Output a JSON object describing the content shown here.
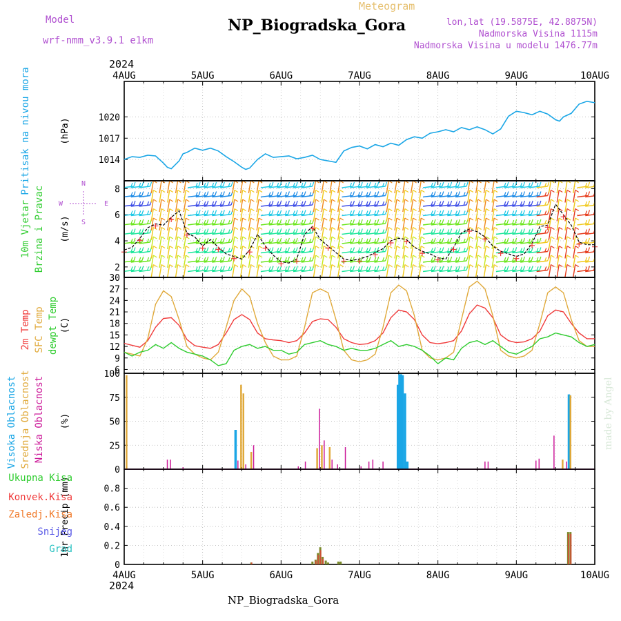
{
  "header": {
    "title": "NP_Biogradska_Gora",
    "meteogram": "Meteogram",
    "model_label": "Model",
    "model_name": "wrf-nmm_v3.9.1  e1km",
    "coords": "lon,lat (19.5875E, 42.8875N)",
    "elevation": "Nadmorska Visina 1115m",
    "model_elevation": "Nadmorska Visina u modelu 1476.77m"
  },
  "footer": {
    "station": "NP_Biogradska_Gora"
  },
  "watermark": "made by Angel",
  "colors": {
    "pressure": "#1aa6e6",
    "temp2m": "#f03a3a",
    "sfc": "#e0a93a",
    "dewpt": "#2ecc2e",
    "high_cloud": "#1aa6e6",
    "mid_cloud": "#e0a93a",
    "low_cloud": "#cc1a99",
    "total": "#2ecc2e",
    "convective": "#f03a3a",
    "frozen": "#f07a2a",
    "snow": "#5a5ae6",
    "graupel": "#2ac2c2",
    "title_purple": "#b050d0",
    "meteogram": "#e6c070"
  },
  "chart_data": [
    {
      "type": "line",
      "id": "pressure",
      "year": "2024",
      "x_ticks": [
        "4AUG",
        "5AUG",
        "6AUG",
        "7AUG",
        "8AUG",
        "9AUG",
        "10AUG"
      ],
      "ylabel": "(hPa)",
      "side_label": [
        "Pritisak na nivou mora"
      ],
      "ylim": [
        1011,
        1025
      ],
      "yticks": [
        1014,
        1017,
        1020
      ],
      "x_days": [
        0,
        0.1,
        0.2,
        0.3,
        0.4,
        0.5,
        0.55,
        0.6,
        0.7,
        0.75,
        0.8,
        0.9,
        1.0,
        1.1,
        1.2,
        1.3,
        1.4,
        1.5,
        1.55,
        1.6,
        1.7,
        1.8,
        1.9,
        2.0,
        2.1,
        2.2,
        2.3,
        2.4,
        2.5,
        2.6,
        2.7,
        2.8,
        2.9,
        3.0,
        3.1,
        3.2,
        3.3,
        3.4,
        3.5,
        3.6,
        3.7,
        3.8,
        3.9,
        4.0,
        4.1,
        4.2,
        4.3,
        4.4,
        4.5,
        4.6,
        4.7,
        4.8,
        4.9,
        5.0,
        5.1,
        5.2,
        5.3,
        5.4,
        5.5,
        5.55,
        5.6,
        5.7,
        5.8,
        5.9,
        6.0
      ],
      "values": [
        1014.0,
        1014.4,
        1014.3,
        1014.6,
        1014.5,
        1013.5,
        1012.9,
        1012.7,
        1013.8,
        1014.8,
        1015.0,
        1015.6,
        1015.3,
        1015.6,
        1015.2,
        1014.4,
        1013.7,
        1012.9,
        1012.6,
        1012.8,
        1014.0,
        1014.8,
        1014.3,
        1014.4,
        1014.5,
        1014.1,
        1014.3,
        1014.6,
        1014.0,
        1013.8,
        1013.6,
        1015.2,
        1015.7,
        1015.9,
        1015.5,
        1016.1,
        1015.8,
        1016.3,
        1016.0,
        1016.8,
        1017.2,
        1017.0,
        1017.7,
        1017.9,
        1018.2,
        1017.9,
        1018.5,
        1018.2,
        1018.6,
        1018.2,
        1017.6,
        1018.3,
        1020.1,
        1020.8,
        1020.6,
        1020.3,
        1020.8,
        1020.4,
        1019.6,
        1019.4,
        1020.0,
        1020.5,
        1021.8,
        1022.2,
        1022.0
      ]
    },
    {
      "type": "line",
      "id": "wind",
      "ylabel": "(m/s)",
      "side_label": [
        "10m Vjetar",
        "Brzina i Pravac"
      ],
      "compass": [
        "N",
        "E",
        "S",
        "W"
      ],
      "ylim": [
        1.2,
        8.6
      ],
      "yticks": [
        2,
        4,
        6,
        8
      ],
      "x_days": [
        0,
        0.1,
        0.2,
        0.3,
        0.4,
        0.5,
        0.6,
        0.7,
        0.8,
        0.9,
        1.0,
        1.1,
        1.2,
        1.3,
        1.4,
        1.5,
        1.6,
        1.7,
        1.8,
        1.9,
        2.0,
        2.1,
        2.2,
        2.3,
        2.4,
        2.5,
        2.6,
        2.7,
        2.8,
        2.9,
        3.0,
        3.1,
        3.2,
        3.3,
        3.4,
        3.5,
        3.6,
        3.7,
        3.8,
        3.9,
        4.0,
        4.1,
        4.2,
        4.3,
        4.4,
        4.5,
        4.6,
        4.7,
        4.8,
        4.9,
        5.0,
        5.1,
        5.2,
        5.3,
        5.4,
        5.5,
        5.6,
        5.7,
        5.8,
        5.9,
        6.0
      ],
      "values": [
        3.3,
        3.5,
        4.2,
        5.0,
        5.3,
        5.2,
        5.8,
        6.3,
        4.6,
        4.3,
        3.6,
        4.1,
        3.5,
        3.0,
        2.8,
        2.6,
        3.3,
        4.5,
        3.6,
        2.9,
        2.4,
        2.3,
        2.6,
        4.5,
        5.1,
        4.1,
        3.6,
        3.1,
        2.6,
        2.5,
        2.6,
        2.8,
        3.1,
        3.4,
        4.0,
        4.2,
        4.1,
        3.5,
        3.2,
        3.0,
        2.7,
        2.6,
        3.5,
        4.6,
        4.9,
        4.7,
        4.3,
        3.6,
        3.2,
        3.0,
        2.8,
        3.0,
        3.8,
        5.1,
        5.2,
        6.8,
        6.0,
        5.2,
        3.9,
        3.7,
        3.7
      ]
    },
    {
      "type": "line",
      "id": "temperature",
      "ylabel": "(C)",
      "side_label": [
        "2m Temp",
        "SFC Temp",
        "dewpt Temp"
      ],
      "ylim": [
        5,
        30
      ],
      "yticks": [
        6,
        9,
        12,
        15,
        18,
        21,
        24,
        27,
        30
      ],
      "x_days": [
        0,
        0.1,
        0.2,
        0.3,
        0.4,
        0.5,
        0.6,
        0.7,
        0.8,
        0.9,
        1.0,
        1.1,
        1.2,
        1.3,
        1.4,
        1.5,
        1.6,
        1.7,
        1.8,
        1.9,
        2.0,
        2.1,
        2.2,
        2.3,
        2.4,
        2.5,
        2.6,
        2.7,
        2.8,
        2.9,
        3.0,
        3.1,
        3.2,
        3.3,
        3.4,
        3.5,
        3.6,
        3.7,
        3.8,
        3.9,
        4.0,
        4.1,
        4.2,
        4.3,
        4.4,
        4.5,
        4.6,
        4.7,
        4.8,
        4.9,
        5.0,
        5.1,
        5.2,
        5.3,
        5.4,
        5.5,
        5.6,
        5.7,
        5.8,
        5.9,
        6.0
      ],
      "series": [
        {
          "name": "2m Temp",
          "values": [
            12.8,
            12.3,
            11.8,
            13.5,
            17.0,
            19.3,
            19.5,
            17.5,
            13.8,
            12.2,
            11.8,
            11.5,
            12.5,
            15.5,
            19.0,
            20.3,
            19.0,
            15.5,
            14.0,
            13.7,
            13.5,
            13.0,
            13.5,
            15.5,
            18.5,
            19.2,
            19.0,
            17.0,
            14.0,
            13.0,
            12.5,
            12.7,
            13.5,
            15.5,
            19.5,
            21.5,
            21.0,
            19.0,
            15.0,
            13.0,
            12.7,
            13.0,
            13.5,
            16.0,
            20.5,
            22.8,
            22.0,
            19.5,
            15.0,
            13.5,
            13.0,
            13.2,
            14.0,
            16.0,
            20.0,
            21.5,
            21.0,
            18.0,
            15.5,
            14.0,
            14.0
          ]
        },
        {
          "name": "SFC Temp",
          "values": [
            10.5,
            10.0,
            9.5,
            14.0,
            23.0,
            26.5,
            25.0,
            19.0,
            12.0,
            10.0,
            9.0,
            8.5,
            10.5,
            17.0,
            24.0,
            27.0,
            25.0,
            18.0,
            13.0,
            9.5,
            8.5,
            8.5,
            9.5,
            17.0,
            26.0,
            27.0,
            26.0,
            19.0,
            11.0,
            8.5,
            8.0,
            8.5,
            10.0,
            17.0,
            26.0,
            28.0,
            26.5,
            20.0,
            11.0,
            9.0,
            8.5,
            9.0,
            10.5,
            19.0,
            27.5,
            29.0,
            27.0,
            20.0,
            11.0,
            9.5,
            9.0,
            9.5,
            11.0,
            18.0,
            26.0,
            27.5,
            26.0,
            19.0,
            13.5,
            12.0,
            12.0
          ]
        },
        {
          "name": "dewpt Temp",
          "values": [
            10.5,
            9.5,
            10.5,
            11.0,
            12.5,
            11.5,
            13.0,
            11.5,
            10.5,
            10.0,
            9.5,
            8.5,
            7.0,
            7.5,
            11.0,
            12.0,
            12.5,
            11.5,
            12.0,
            11.0,
            11.0,
            10.0,
            10.5,
            12.5,
            13.0,
            13.5,
            12.5,
            12.0,
            11.0,
            11.5,
            11.0,
            11.0,
            11.5,
            12.5,
            13.5,
            12.0,
            12.5,
            12.0,
            11.0,
            9.5,
            7.5,
            9.0,
            8.5,
            11.5,
            13.0,
            13.5,
            12.5,
            13.5,
            12.0,
            10.5,
            10.0,
            11.0,
            12.0,
            14.0,
            14.5,
            15.5,
            15.0,
            14.5,
            13.0,
            12.0,
            12.5
          ]
        }
      ]
    },
    {
      "type": "bar",
      "id": "clouds",
      "ylabel": "(%)",
      "side_label": [
        "Visoka Oblacnost",
        "Srednja Oblacnost",
        "Niska Oblacnost"
      ],
      "ylim": [
        0,
        100
      ],
      "yticks": [
        0,
        25,
        50,
        75,
        100
      ],
      "series": [
        {
          "name": "Visoka Oblacnost",
          "x_days": [
            1.42,
            3.49,
            3.51,
            3.53,
            3.55,
            3.58,
            3.61,
            5.67
          ],
          "values": [
            41,
            88,
            99,
            99,
            98,
            79,
            8,
            78
          ]
        },
        {
          "name": "Srednja Oblacnost",
          "x_days": [
            0.03,
            1.49,
            1.52,
            1.62,
            2.46,
            2.52,
            2.62,
            5.59,
            5.69
          ],
          "values": [
            98,
            88,
            79,
            18,
            22,
            25,
            23,
            10,
            77
          ]
        },
        {
          "name": "Niska Oblacnost",
          "x_days": [
            0.55,
            0.59,
            0.75,
            1.45,
            1.55,
            1.65,
            2.22,
            2.31,
            2.49,
            2.55,
            2.65,
            2.72,
            2.82,
            3.02,
            3.12,
            3.17,
            3.3,
            4.6,
            4.64,
            5.25,
            5.29,
            5.48,
            5.64
          ],
          "values": [
            10,
            10,
            2,
            9,
            5,
            25,
            3,
            8,
            63,
            30,
            10,
            5,
            23,
            3,
            8,
            10,
            8,
            8,
            8,
            9,
            11,
            35,
            8
          ]
        }
      ]
    },
    {
      "type": "bar",
      "id": "precip",
      "ylabel": "1hr Precip (mm)",
      "side_label": [
        "Ukupna Kisa",
        "Konvek.Kisa",
        "Zaledj.Kisa",
        "Snijeg",
        "Grad"
      ],
      "ylim": [
        0,
        1.0
      ],
      "yticks": [
        0,
        0.2,
        0.4,
        0.6,
        0.8
      ],
      "series": [
        {
          "name": "Ukupna Kisa",
          "x_days": [
            1.62,
            2.4,
            2.44,
            2.47,
            2.5,
            2.53,
            2.57,
            2.6,
            2.73,
            2.76,
            5.66,
            5.69
          ],
          "values": [
            0.02,
            0.03,
            0.05,
            0.12,
            0.18,
            0.08,
            0.04,
            0.02,
            0.03,
            0.03,
            0.34,
            0.34
          ]
        },
        {
          "name": "Konvek.Kisa",
          "x_days": [
            1.62,
            2.44,
            2.47,
            2.5,
            2.53,
            5.66,
            5.69
          ],
          "values": [
            0.02,
            0.04,
            0.1,
            0.15,
            0.06,
            0.32,
            0.32
          ]
        }
      ]
    }
  ]
}
